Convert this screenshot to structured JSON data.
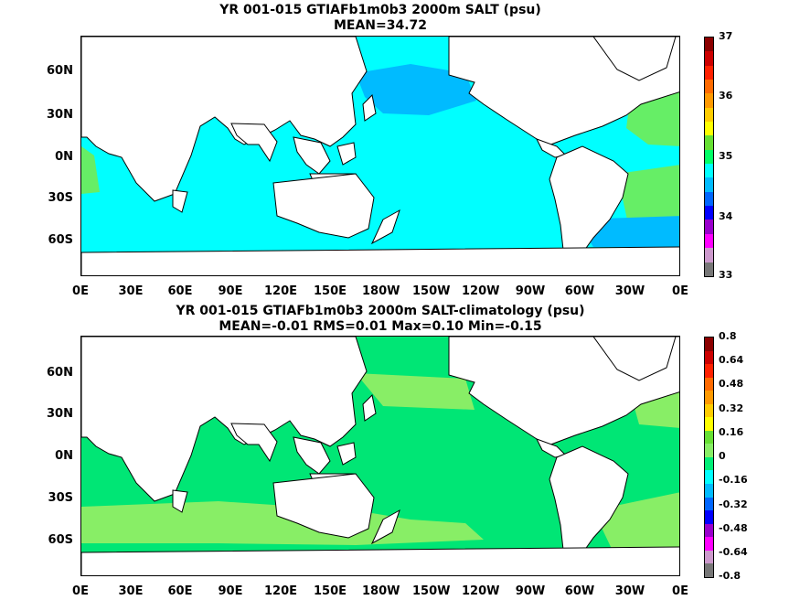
{
  "panels": [
    {
      "title_line1": "YR 001-015 GTIAFb1m0b3 2000m SALT (psu)",
      "title_line2": "MEAN=34.72",
      "colorbar_labels": [
        "37",
        "36",
        "35",
        "34",
        "33"
      ],
      "colorbar_colors": [
        "#8b0000",
        "#cc0000",
        "#ff2000",
        "#ff6a00",
        "#ff9900",
        "#ffcc00",
        "#ffff00",
        "#66e033",
        "#00ff66",
        "#00ffff",
        "#00bbff",
        "#0066ff",
        "#0000ff",
        "#9900cc",
        "#ff00ff",
        "#cc99cc",
        "#777777"
      ],
      "main_color": "#00ffff"
    },
    {
      "title_line1": "YR 001-015 GTIAFb1m0b3 2000m SALT-climatology (psu)",
      "title_line2": "MEAN=-0.01   RMS=0.01   Max=0.10   Min=-0.15",
      "colorbar_labels": [
        "0.8",
        "0.64",
        "0.48",
        "0.32",
        "0.16",
        "0",
        "-0.16",
        "-0.32",
        "-0.48",
        "-0.64",
        "-0.8"
      ],
      "colorbar_colors": [
        "#8b0000",
        "#cc0000",
        "#ff2000",
        "#ff6a00",
        "#ff9900",
        "#ffcc00",
        "#ffff00",
        "#66e033",
        "#88ee66",
        "#00ee77",
        "#00ffff",
        "#00bbff",
        "#0066ff",
        "#0000ff",
        "#9900cc",
        "#ff00ff",
        "#cc99cc",
        "#777777"
      ],
      "main_color": "#00e675"
    }
  ],
  "lat_labels": [
    "60N",
    "30N",
    "0N",
    "30S",
    "60S"
  ],
  "lon_labels": [
    "0E",
    "30E",
    "60E",
    "90E",
    "120E",
    "150E",
    "180W",
    "150W",
    "120W",
    "90W",
    "60W",
    "30W",
    "0E"
  ],
  "colors": {
    "land": "#ffffff",
    "coast": "#000000",
    "panel1_ocean": "#00ffff",
    "panel1_high": "#66ee66",
    "panel1_low": "#00bbff",
    "panel2_ocean": "#00e675",
    "panel2_high": "#88ee66",
    "panel2_low": "#00ffff"
  }
}
